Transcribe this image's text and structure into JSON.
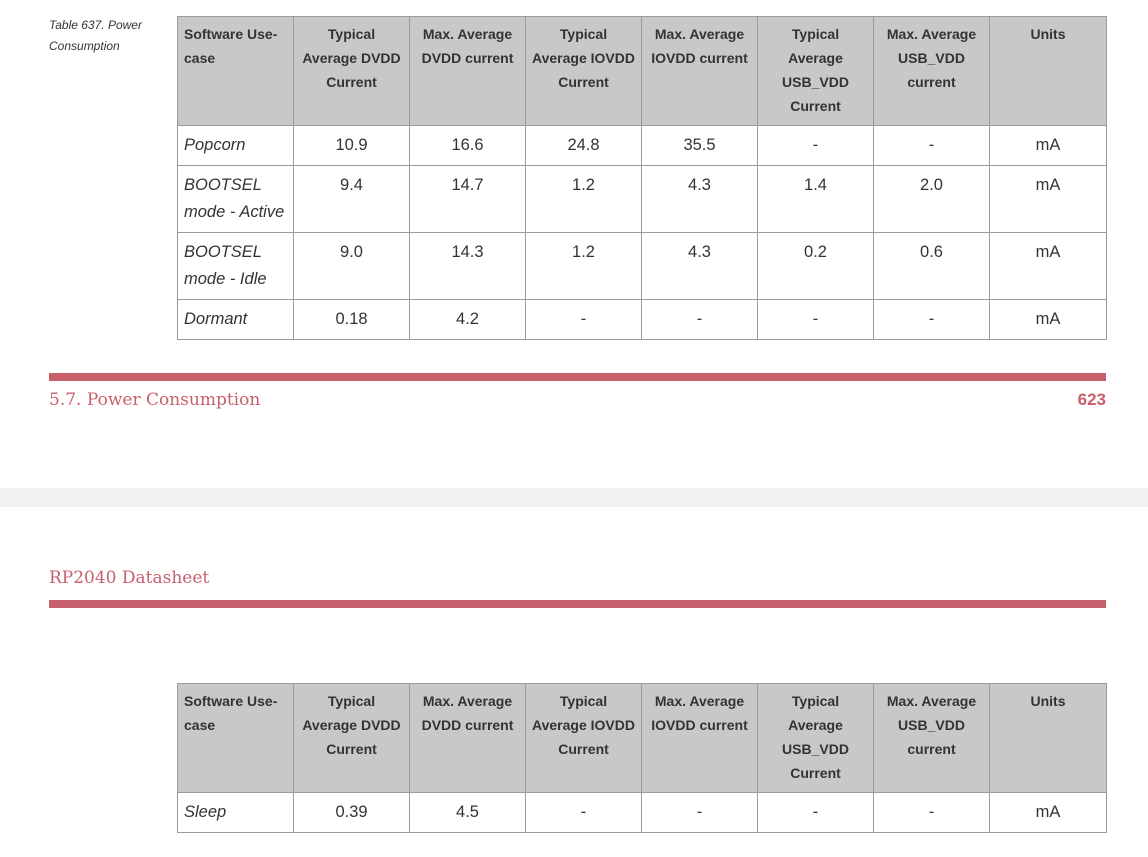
{
  "caption": "Table 637. Power Consumption",
  "columns": [
    "Software Use-case",
    "Typical Average DVDD Current",
    "Max. Average DVDD current",
    "Typical Average IOVDD Current",
    "Max. Average IOVDD current",
    "Typical Average USB_VDD Current",
    "Max. Average USB_VDD current",
    "Units"
  ],
  "table_top_rows": [
    [
      "Popcorn",
      "10.9",
      "16.6",
      "24.8",
      "35.5",
      "-",
      "-",
      "mA"
    ],
    [
      "BOOTSEL mode - Active",
      "9.4",
      "14.7",
      "1.2",
      "4.3",
      "1.4",
      "2.0",
      "mA"
    ],
    [
      "BOOTSEL mode - Idle",
      "9.0",
      "14.3",
      "1.2",
      "4.3",
      "0.2",
      "0.6",
      "mA"
    ],
    [
      "Dormant",
      "0.18",
      "4.2",
      "-",
      "-",
      "-",
      "-",
      "mA"
    ]
  ],
  "table_bottom_rows": [
    [
      "Sleep",
      "0.39",
      "4.5",
      "-",
      "-",
      "-",
      "-",
      "mA"
    ]
  ],
  "footer": {
    "section": "5.7. Power Consumption",
    "page_number": "623"
  },
  "header": {
    "doc_title": "RP2040 Datasheet"
  },
  "colors": {
    "accent": "#c75f6d",
    "table_header_bg": "#c8c8c9",
    "border": "#9b9b9b"
  }
}
